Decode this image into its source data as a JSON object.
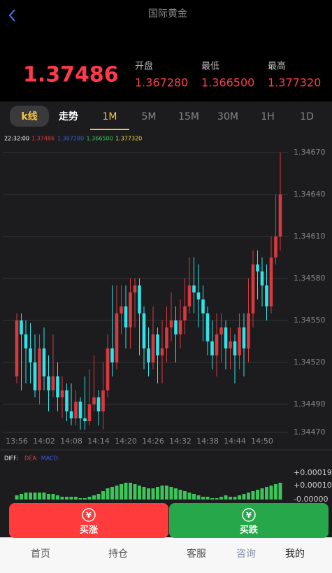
{
  "header": {
    "title": "国际黄金"
  },
  "quote": {
    "price": "1.37486",
    "open_label": "开盘",
    "open": "1.367280",
    "low_label": "最低",
    "low": "1.366500",
    "high_label": "最高",
    "high": "1.377320"
  },
  "tabs": [
    "k线",
    "走势",
    "1M",
    "5M",
    "15M",
    "30M",
    "1H",
    "1D"
  ],
  "chart_data": {
    "type": "candlestick",
    "legend_time": "22:32:00",
    "legend_values": [
      "1.37486",
      "1.367280",
      "1.366500",
      "1.377320"
    ],
    "legend_colors": [
      "#e0393e",
      "#3b5bd9",
      "#3cc45a",
      "#e8d84a"
    ],
    "x_labels": [
      "13:56",
      "14:02",
      "14:08",
      "14:14",
      "14:20",
      "14:26",
      "14:32",
      "14:38",
      "14:44",
      "14:50"
    ],
    "open": [
      1.3451,
      1.3455,
      1.3454,
      1.3453,
      1.3452,
      1.345,
      1.3453,
      1.3451,
      1.345,
      1.3451,
      1.34495,
      1.345,
      1.34485,
      1.3448,
      1.34492,
      1.3448,
      1.34478,
      1.3449,
      1.34495,
      1.34485,
      1.345,
      1.3453,
      1.3452,
      1.34555,
      1.3456,
      1.34545,
      1.3457,
      1.34575,
      1.34555,
      1.3453,
      1.3452,
      1.3454,
      1.34525,
      1.3453,
      1.34545,
      1.3455,
      1.3454,
      1.3455,
      1.3456,
      1.34575,
      1.3457,
      1.34565,
      1.34555,
      1.34535,
      1.34525,
      1.3454,
      1.34545,
      1.3453,
      1.34535,
      1.34525,
      1.34545,
      1.3453,
      1.34555,
      1.3459,
      1.34585,
      1.34575,
      1.3456,
      1.34595,
      1.3461
    ],
    "high": [
      1.34555,
      1.34555,
      1.3455,
      1.34548,
      1.3454,
      1.3454,
      1.34545,
      1.34525,
      1.3454,
      1.3452,
      1.3451,
      1.34505,
      1.34505,
      1.345,
      1.34495,
      1.3451,
      1.34515,
      1.34525,
      1.345,
      1.3452,
      1.3454,
      1.34575,
      1.34575,
      1.34575,
      1.34575,
      1.3458,
      1.3458,
      1.3458,
      1.3456,
      1.34545,
      1.3456,
      1.34545,
      1.3455,
      1.3456,
      1.3457,
      1.3456,
      1.34565,
      1.3458,
      1.34595,
      1.34595,
      1.3459,
      1.34575,
      1.3456,
      1.3455,
      1.34555,
      1.34555,
      1.3455,
      1.34545,
      1.3454,
      1.34555,
      1.34555,
      1.3458,
      1.346,
      1.346,
      1.34595,
      1.3459,
      1.3461,
      1.3464,
      1.3467
    ],
    "low": [
      1.34505,
      1.345,
      1.34505,
      1.34505,
      1.34495,
      1.3449,
      1.345,
      1.34485,
      1.34495,
      1.34485,
      1.3448,
      1.34478,
      1.34475,
      1.34475,
      1.34472,
      1.34472,
      1.34475,
      1.34485,
      1.34475,
      1.34472,
      1.34495,
      1.3451,
      1.34515,
      1.3454,
      1.3453,
      1.3453,
      1.34545,
      1.34525,
      1.34515,
      1.3451,
      1.34515,
      1.34505,
      1.34505,
      1.3452,
      1.34535,
      1.3452,
      1.3453,
      1.3454,
      1.34555,
      1.34555,
      1.34545,
      1.34535,
      1.34525,
      1.34515,
      1.3451,
      1.3452,
      1.34515,
      1.34515,
      1.34505,
      1.34515,
      1.3451,
      1.3452,
      1.34545,
      1.34565,
      1.3456,
      1.3455,
      1.34555,
      1.3459,
      1.346
    ],
    "close": [
      1.3455,
      1.3454,
      1.3453,
      1.3452,
      1.345,
      1.3453,
      1.3451,
      1.345,
      1.3451,
      1.34495,
      1.345,
      1.34485,
      1.3448,
      1.34492,
      1.3448,
      1.34478,
      1.3449,
      1.34495,
      1.34485,
      1.345,
      1.3453,
      1.3452,
      1.34555,
      1.3456,
      1.34545,
      1.3457,
      1.34575,
      1.34555,
      1.3453,
      1.3452,
      1.3454,
      1.34525,
      1.3453,
      1.34545,
      1.3455,
      1.3454,
      1.3455,
      1.3456,
      1.34575,
      1.3457,
      1.34565,
      1.34555,
      1.34535,
      1.34525,
      1.3454,
      1.34545,
      1.3453,
      1.34535,
      1.34525,
      1.34545,
      1.3453,
      1.34555,
      1.3459,
      1.34585,
      1.34575,
      1.3456,
      1.34595,
      1.3461,
      1.3464
    ],
    "up_color": "#d9393e",
    "down_color": "#2fe3ea",
    "ylim": [
      1.3447,
      1.3467
    ],
    "yticks": [
      {
        "value": 1.3467,
        "label": "1.34670"
      },
      {
        "value": 1.3464,
        "label": "1.34640"
      },
      {
        "value": 1.3461,
        "label": "1.34610"
      },
      {
        "value": 1.3458,
        "label": "1.34580"
      },
      {
        "value": 1.3455,
        "label": "1.34550"
      },
      {
        "value": 1.3452,
        "label": "1.34520"
      },
      {
        "value": 1.3449,
        "label": "1.34490"
      },
      {
        "value": 1.3447,
        "label": "1.34470"
      }
    ],
    "grid": true
  },
  "macd": {
    "type": "bar",
    "legend": [
      "DIFF:",
      "DEA:",
      "MACD:"
    ],
    "legend_colors": [
      "#ffffff",
      "#e0393e",
      "#3b5bd9"
    ],
    "values": [
      3e-05,
      4e-05,
      5e-05,
      5e-05,
      5e-05,
      5e-05,
      5e-05,
      4e-05,
      4e-05,
      3e-05,
      2e-05,
      2e-05,
      2e-05,
      2e-05,
      1e-05,
      1e-05,
      2e-05,
      3e-05,
      4e-05,
      6e-05,
      8e-05,
      9e-05,
      0.0001,
      0.00011,
      0.00012,
      0.00012,
      0.00011,
      0.0001,
      9e-05,
      8e-05,
      8e-05,
      9e-05,
      0.0001,
      0.0001,
      9e-05,
      8e-05,
      7e-05,
      6e-05,
      5e-05,
      4e-05,
      3e-05,
      2e-05,
      2e-05,
      1e-05,
      1e-05,
      2e-05,
      3e-05,
      2e-05,
      2e-05,
      3e-05,
      4e-05,
      5e-05,
      6e-05,
      7e-05,
      8e-05,
      9e-05,
      0.0001,
      0.00011,
      0.00012
    ],
    "color": "#3cc45a",
    "ylim": [
      -1e-05,
      0.00022
    ],
    "yticks": [
      {
        "value": 0.00019,
        "label": "+0.00019"
      },
      {
        "value": 0.0001,
        "label": "+0.00010"
      },
      {
        "value": 0,
        "label": "-0.00000"
      }
    ]
  },
  "buttons": [
    {
      "icon": "¥",
      "label": "买涨"
    },
    {
      "icon": "¥",
      "label": "买跌"
    }
  ],
  "nav": [
    "首页",
    "持仓",
    "客服",
    "咨询",
    "我的"
  ]
}
